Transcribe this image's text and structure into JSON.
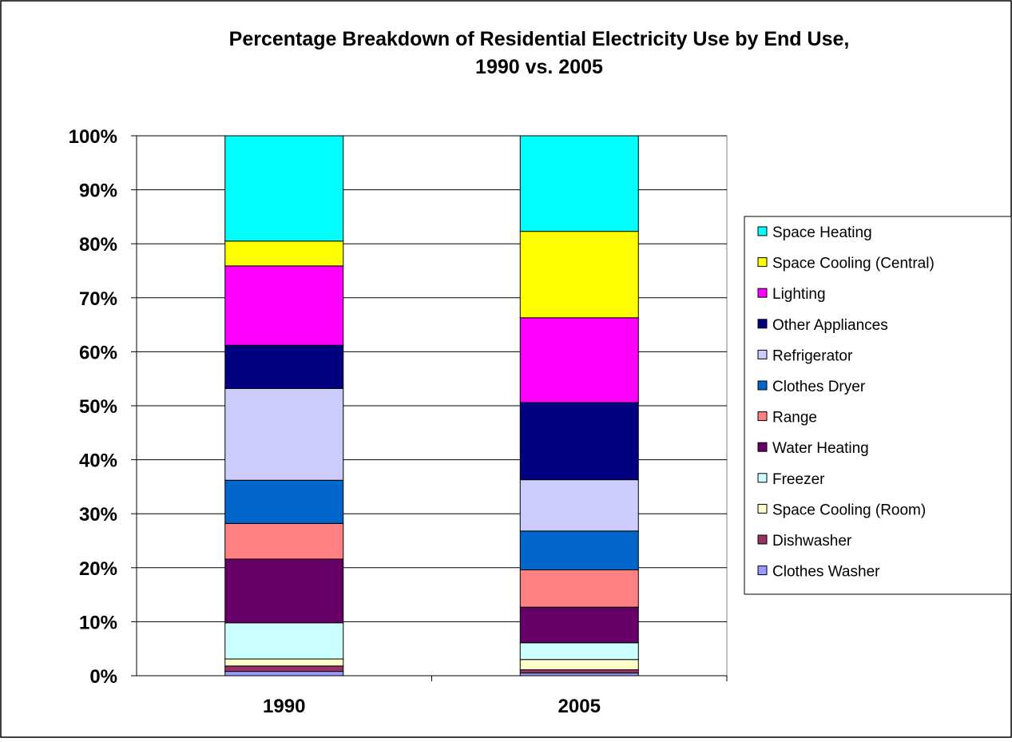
{
  "chart_data": {
    "type": "bar",
    "stacked": "percent",
    "title": "Percentage Breakdown of Residential Electricity Use by End Use,",
    "title_line2": "1990 vs. 2005",
    "xlabel": "",
    "ylabel": "",
    "ylim": [
      0,
      100
    ],
    "y_ticks": [
      "0%",
      "10%",
      "20%",
      "30%",
      "40%",
      "50%",
      "60%",
      "70%",
      "80%",
      "90%",
      "100%"
    ],
    "categories": [
      "1990",
      "2005"
    ],
    "legend_position": "right",
    "grid": true,
    "series": [
      {
        "name": "Clothes Washer",
        "color": "#9999FF",
        "values": [
          0.8,
          0.5
        ]
      },
      {
        "name": "Dishwasher",
        "color": "#993366",
        "values": [
          1.0,
          0.6
        ]
      },
      {
        "name": "Space Cooling (Room)",
        "color": "#FFFFCC",
        "values": [
          1.3,
          1.9
        ]
      },
      {
        "name": "Freezer",
        "color": "#CCFFFF",
        "values": [
          6.7,
          3.1
        ]
      },
      {
        "name": "Water Heating",
        "color": "#660066",
        "values": [
          11.8,
          6.6
        ]
      },
      {
        "name": "Range",
        "color": "#FF8080",
        "values": [
          6.6,
          6.9
        ]
      },
      {
        "name": "Clothes Dryer",
        "color": "#0066CC",
        "values": [
          8.0,
          7.2
        ]
      },
      {
        "name": "Refrigerator",
        "color": "#CCCCFF",
        "values": [
          17.0,
          9.5
        ]
      },
      {
        "name": "Other Appliances",
        "color": "#000080",
        "values": [
          8.0,
          14.3
        ]
      },
      {
        "name": "Lighting",
        "color": "#FF00FF",
        "values": [
          14.7,
          15.7
        ]
      },
      {
        "name": "Space Cooling (Central)",
        "color": "#FFFF00",
        "values": [
          4.6,
          16.0
        ]
      },
      {
        "name": "Space Heating",
        "color": "#00FFFF",
        "values": [
          19.5,
          17.7
        ]
      }
    ]
  }
}
